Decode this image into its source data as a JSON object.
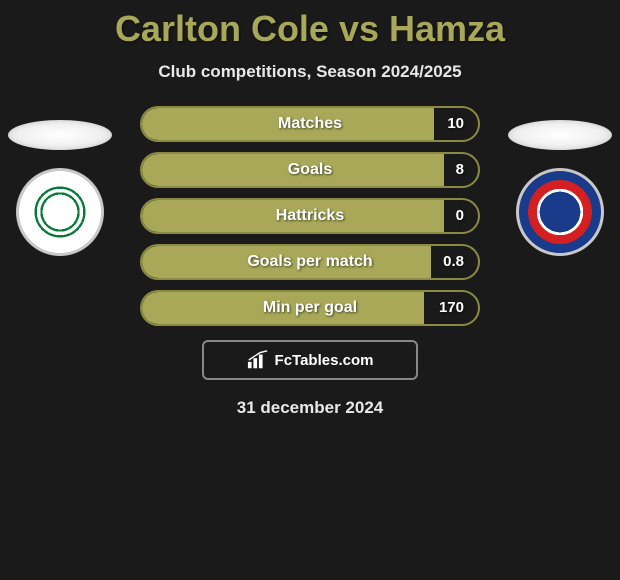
{
  "title": "Carlton Cole vs Hamza",
  "subtitle": "Club competitions, Season 2024/2025",
  "date": "31 december 2024",
  "footer_brand": "FcTables.com",
  "colors": {
    "accent": "#a8a858",
    "bar_border": "#8a8a42",
    "background": "#1a1a1a",
    "text": "#ffffff"
  },
  "comparison": {
    "bar_full_width_pct": 95,
    "rows": [
      {
        "label": "Matches",
        "value": "10",
        "fill_pct": 87
      },
      {
        "label": "Goals",
        "value": "8",
        "fill_pct": 90
      },
      {
        "label": "Hattricks",
        "value": "0",
        "fill_pct": 90
      },
      {
        "label": "Goals per match",
        "value": "0.8",
        "fill_pct": 86
      },
      {
        "label": "Min per goal",
        "value": "170",
        "fill_pct": 84
      }
    ]
  },
  "players": {
    "left_badge": "celtic",
    "right_badge": "rangers"
  }
}
